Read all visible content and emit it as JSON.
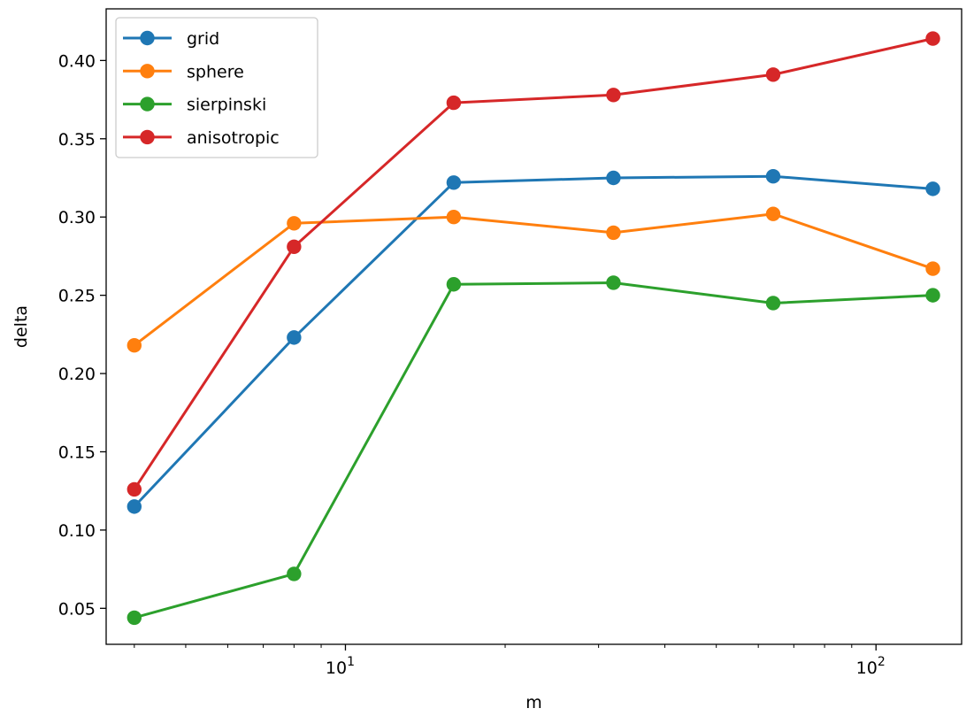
{
  "chart_data": {
    "type": "line",
    "title": "",
    "xlabel": "m",
    "ylabel": "delta",
    "xscale": "log",
    "xlim": [
      3.54,
      145
    ],
    "ylim": [
      0.027,
      0.433
    ],
    "x": [
      4,
      8,
      16,
      32,
      64,
      128
    ],
    "yticks": [
      "0.05",
      "0.10",
      "0.15",
      "0.20",
      "0.25",
      "0.30",
      "0.35",
      "0.40"
    ],
    "xticks": [
      {
        "base": "10",
        "exp": "1"
      },
      {
        "base": "10",
        "exp": "2"
      }
    ],
    "grid": false,
    "legend_position": "upper left",
    "series": [
      {
        "name": "grid",
        "color": "#1f77b4",
        "values": [
          0.115,
          0.223,
          0.322,
          0.325,
          0.326,
          0.318
        ]
      },
      {
        "name": "sphere",
        "color": "#ff7f0e",
        "values": [
          0.218,
          0.296,
          0.3,
          0.29,
          0.302,
          0.267
        ]
      },
      {
        "name": "sierpinski",
        "color": "#2ca02c",
        "values": [
          0.044,
          0.072,
          0.257,
          0.258,
          0.245,
          0.25
        ]
      },
      {
        "name": "anisotropic",
        "color": "#d62728",
        "values": [
          0.126,
          0.281,
          0.373,
          0.378,
          0.391,
          0.414
        ]
      }
    ]
  }
}
